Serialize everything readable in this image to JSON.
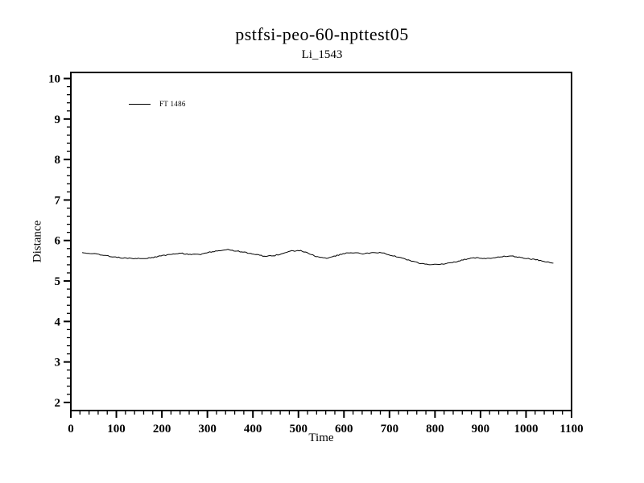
{
  "chart_data": {
    "type": "line",
    "title": "pstfsi-peo-60-npttest05",
    "subtitle": "Li_1543",
    "xlabel": "Time",
    "ylabel": "Distance",
    "xlim": [
      0,
      1100
    ],
    "ylim": [
      1.8,
      10.15
    ],
    "x_major_ticks": [
      0,
      100,
      200,
      300,
      400,
      500,
      600,
      700,
      800,
      900,
      1000,
      1100
    ],
    "x_minor_step": 20,
    "y_major_ticks": [
      2,
      3,
      4,
      5,
      6,
      7,
      8,
      9,
      10
    ],
    "y_minor_step": 0.2,
    "grid": false,
    "legend": {
      "label": "FT 1486",
      "position": "inside-upper-left"
    },
    "line_color": "#000000",
    "background": "#ffffff",
    "series": [
      {
        "name": "FT 1486",
        "x": [
          25,
          45,
          65,
          85,
          105,
          125,
          145,
          165,
          185,
          205,
          225,
          245,
          265,
          285,
          305,
          325,
          345,
          365,
          385,
          405,
          425,
          445,
          465,
          485,
          505,
          525,
          545,
          565,
          585,
          605,
          625,
          645,
          665,
          685,
          705,
          725,
          745,
          765,
          785,
          805,
          825,
          845,
          865,
          885,
          905,
          925,
          945,
          965,
          985,
          1005,
          1025,
          1045,
          1060
        ],
        "y": [
          5.7,
          5.68,
          5.65,
          5.61,
          5.58,
          5.56,
          5.55,
          5.56,
          5.59,
          5.63,
          5.67,
          5.68,
          5.65,
          5.66,
          5.71,
          5.75,
          5.77,
          5.74,
          5.7,
          5.66,
          5.61,
          5.62,
          5.68,
          5.74,
          5.75,
          5.67,
          5.58,
          5.56,
          5.63,
          5.69,
          5.7,
          5.67,
          5.71,
          5.69,
          5.63,
          5.57,
          5.5,
          5.44,
          5.41,
          5.4,
          5.43,
          5.47,
          5.53,
          5.58,
          5.55,
          5.56,
          5.6,
          5.62,
          5.59,
          5.55,
          5.52,
          5.47,
          5.44
        ]
      }
    ]
  }
}
